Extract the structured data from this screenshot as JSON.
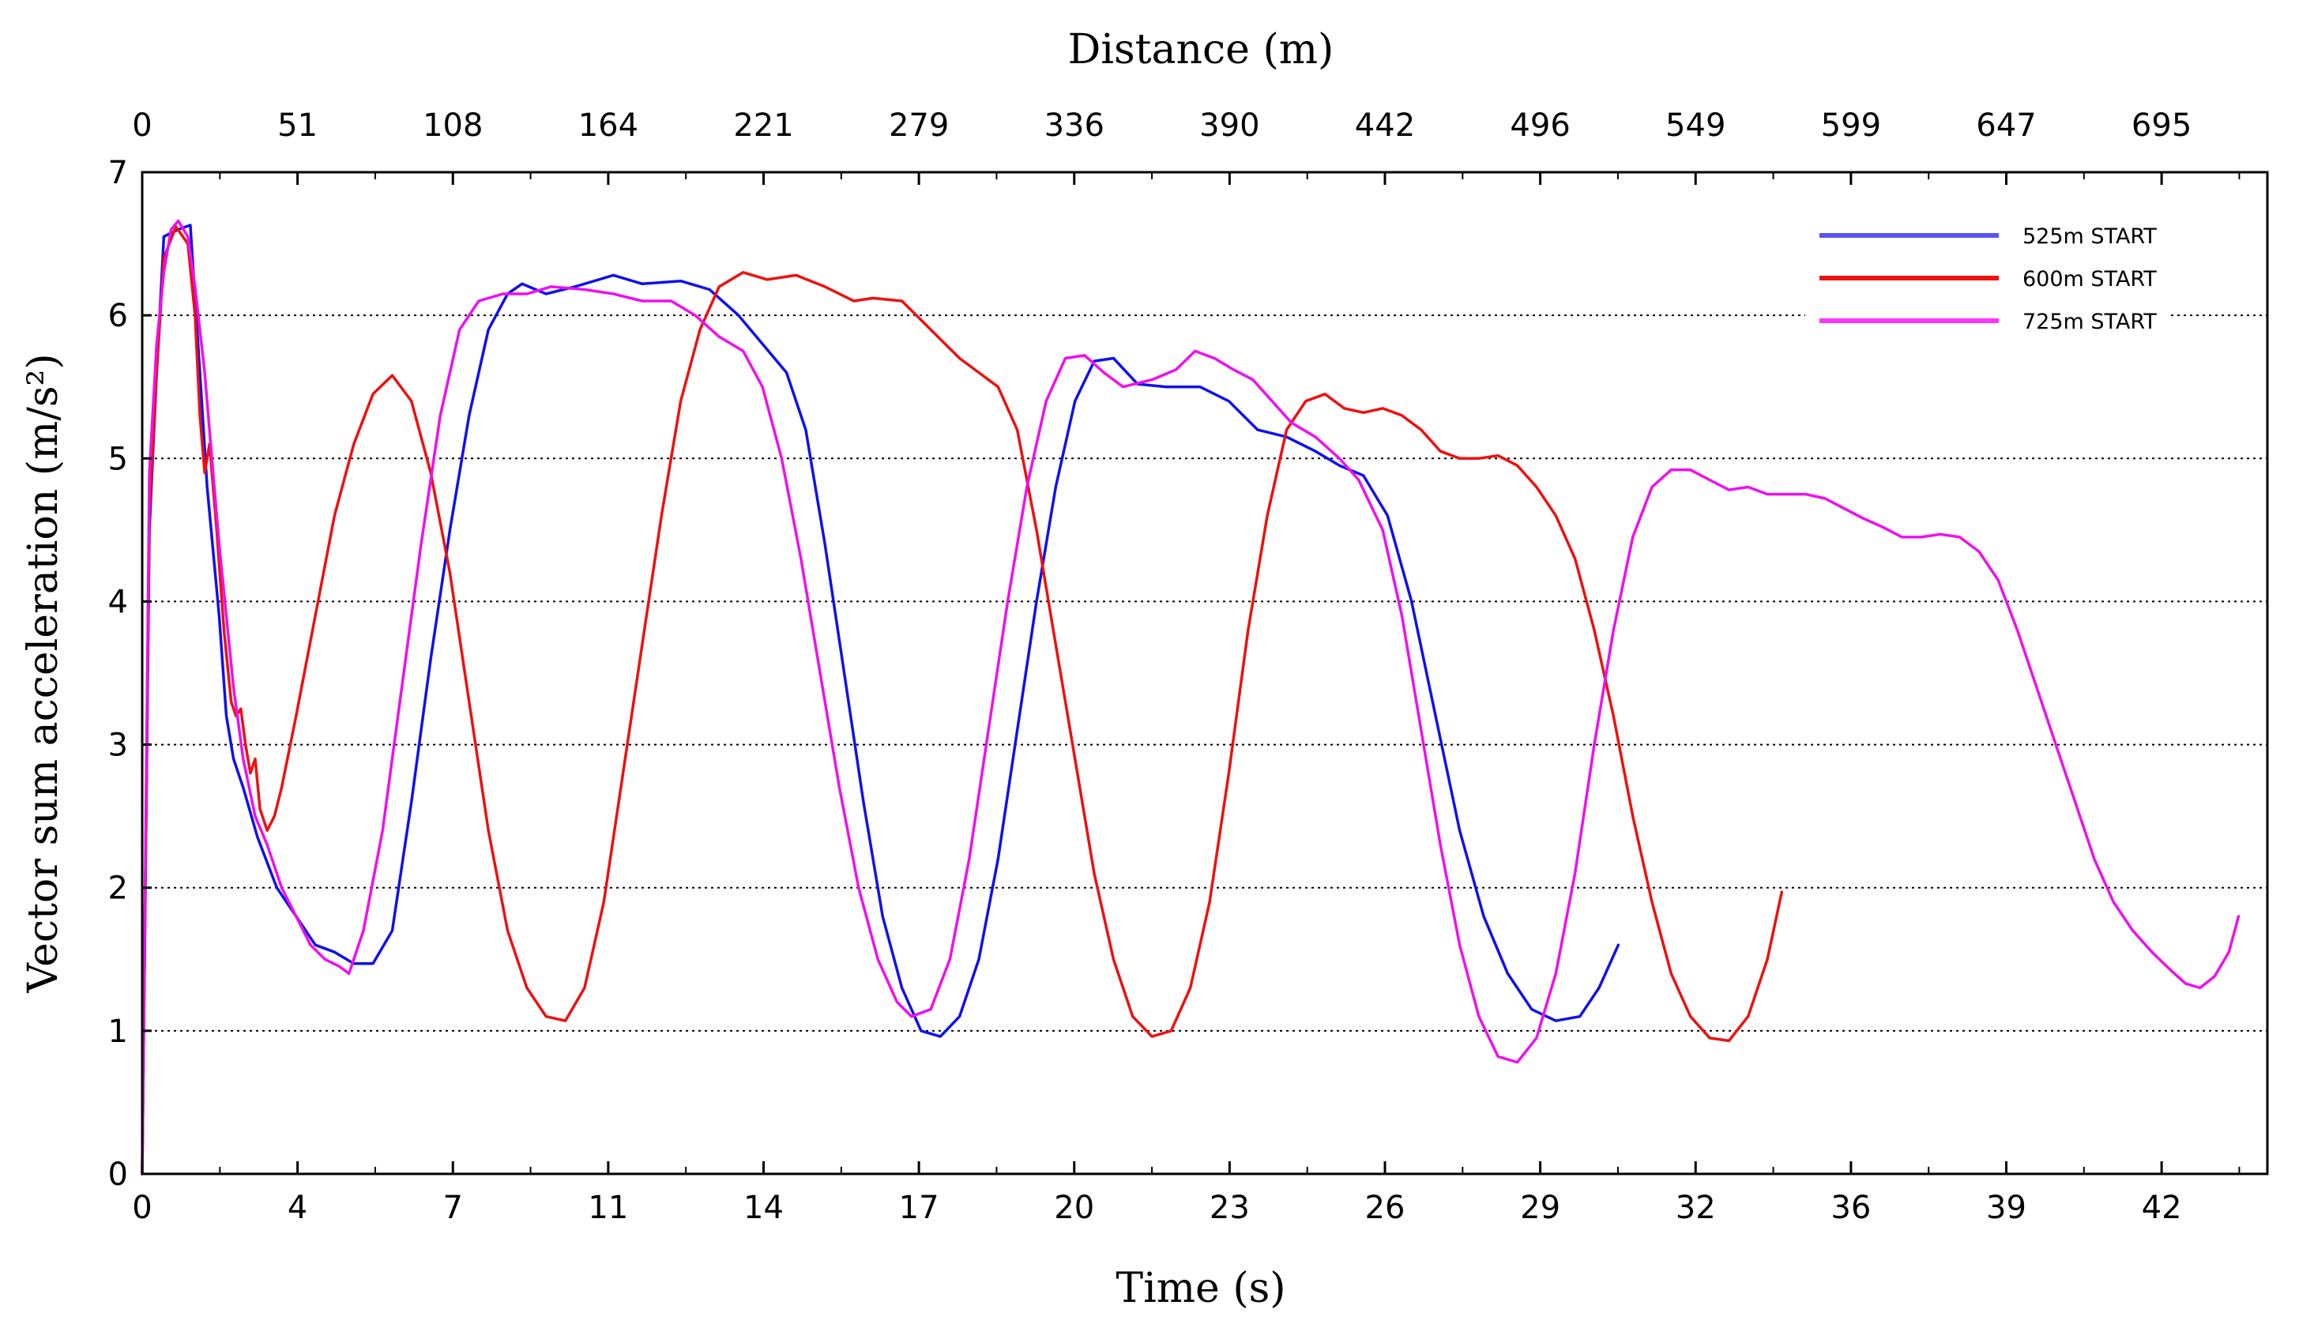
{
  "chart_data": {
    "type": "line",
    "xlabel": "Time (s)",
    "ylabel": "Vector sum acceleration (m/s²)",
    "x2label": "Distance (m)",
    "xlim": [
      0,
      44.2
    ],
    "ylim": [
      0,
      7
    ],
    "x_ticks": [
      "0",
      "4",
      "7",
      "11",
      "14",
      "17",
      "20",
      "23",
      "26",
      "29",
      "32",
      "36",
      "39",
      "42"
    ],
    "y_ticks": [
      "0",
      "1",
      "2",
      "3",
      "4",
      "5",
      "6",
      "7"
    ],
    "x2_ticks": [
      "0",
      "51",
      "108",
      "164",
      "221",
      "279",
      "336",
      "390",
      "442",
      "496",
      "549",
      "599",
      "647",
      "695"
    ],
    "grid": "horizontal dotted",
    "legend_position": "top-right",
    "series": [
      {
        "name": "525m START",
        "color": "#1010ee",
        "legend_color": "#5555f5",
        "points": [
          [
            0,
            0
          ],
          [
            0.15,
            4.5
          ],
          [
            0.3,
            5.6
          ],
          [
            0.45,
            6.55
          ],
          [
            0.75,
            6.6
          ],
          [
            1.0,
            6.63
          ],
          [
            1.2,
            5.6
          ],
          [
            1.35,
            4.8
          ],
          [
            1.6,
            3.9
          ],
          [
            1.75,
            3.2
          ],
          [
            1.9,
            2.9
          ],
          [
            2.1,
            2.7
          ],
          [
            2.4,
            2.35
          ],
          [
            2.8,
            2.0
          ],
          [
            3.2,
            1.8
          ],
          [
            3.6,
            1.6
          ],
          [
            4.0,
            1.55
          ],
          [
            4.4,
            1.47
          ],
          [
            4.8,
            1.47
          ],
          [
            5.2,
            1.7
          ],
          [
            5.6,
            2.6
          ],
          [
            6.0,
            3.6
          ],
          [
            6.4,
            4.5
          ],
          [
            6.8,
            5.3
          ],
          [
            7.2,
            5.9
          ],
          [
            7.6,
            6.15
          ],
          [
            7.9,
            6.22
          ],
          [
            8.4,
            6.15
          ],
          [
            9.0,
            6.2
          ],
          [
            9.8,
            6.28
          ],
          [
            10.4,
            6.22
          ],
          [
            11.2,
            6.24
          ],
          [
            11.8,
            6.18
          ],
          [
            12.4,
            6.0
          ],
          [
            12.9,
            5.8
          ],
          [
            13.4,
            5.6
          ],
          [
            13.8,
            5.2
          ],
          [
            14.2,
            4.4
          ],
          [
            14.6,
            3.5
          ],
          [
            15.0,
            2.6
          ],
          [
            15.4,
            1.8
          ],
          [
            15.8,
            1.3
          ],
          [
            16.2,
            1.0
          ],
          [
            16.6,
            0.96
          ],
          [
            17.0,
            1.1
          ],
          [
            17.4,
            1.5
          ],
          [
            17.8,
            2.2
          ],
          [
            18.2,
            3.1
          ],
          [
            18.6,
            4.0
          ],
          [
            19.0,
            4.8
          ],
          [
            19.4,
            5.4
          ],
          [
            19.8,
            5.68
          ],
          [
            20.2,
            5.7
          ],
          [
            20.7,
            5.52
          ],
          [
            21.3,
            5.5
          ],
          [
            22.0,
            5.5
          ],
          [
            22.6,
            5.4
          ],
          [
            23.2,
            5.2
          ],
          [
            23.8,
            5.15
          ],
          [
            24.4,
            5.05
          ],
          [
            24.9,
            4.95
          ],
          [
            25.4,
            4.88
          ],
          [
            25.9,
            4.6
          ],
          [
            26.4,
            4.0
          ],
          [
            26.9,
            3.2
          ],
          [
            27.4,
            2.4
          ],
          [
            27.9,
            1.8
          ],
          [
            28.4,
            1.4
          ],
          [
            28.9,
            1.15
          ],
          [
            29.4,
            1.07
          ],
          [
            29.9,
            1.1
          ],
          [
            30.3,
            1.3
          ],
          [
            30.7,
            1.6
          ]
        ]
      },
      {
        "name": "600m START",
        "color": "#ee1010",
        "legend_color": "#ee1010",
        "points": [
          [
            0,
            0
          ],
          [
            0.15,
            4.6
          ],
          [
            0.3,
            5.6
          ],
          [
            0.45,
            6.4
          ],
          [
            0.7,
            6.62
          ],
          [
            0.95,
            6.5
          ],
          [
            1.1,
            6.0
          ],
          [
            1.2,
            5.3
          ],
          [
            1.3,
            4.9
          ],
          [
            1.4,
            5.1
          ],
          [
            1.55,
            4.5
          ],
          [
            1.7,
            3.8
          ],
          [
            1.85,
            3.3
          ],
          [
            1.95,
            3.2
          ],
          [
            2.05,
            3.25
          ],
          [
            2.15,
            3.0
          ],
          [
            2.25,
            2.8
          ],
          [
            2.35,
            2.9
          ],
          [
            2.45,
            2.55
          ],
          [
            2.6,
            2.4
          ],
          [
            2.75,
            2.5
          ],
          [
            2.9,
            2.7
          ],
          [
            3.2,
            3.2
          ],
          [
            3.6,
            3.9
          ],
          [
            4.0,
            4.6
          ],
          [
            4.4,
            5.1
          ],
          [
            4.8,
            5.45
          ],
          [
            5.2,
            5.58
          ],
          [
            5.6,
            5.4
          ],
          [
            6.0,
            4.9
          ],
          [
            6.4,
            4.2
          ],
          [
            6.8,
            3.3
          ],
          [
            7.2,
            2.4
          ],
          [
            7.6,
            1.7
          ],
          [
            8.0,
            1.3
          ],
          [
            8.4,
            1.1
          ],
          [
            8.8,
            1.07
          ],
          [
            9.2,
            1.3
          ],
          [
            9.6,
            1.9
          ],
          [
            10.0,
            2.8
          ],
          [
            10.4,
            3.7
          ],
          [
            10.8,
            4.6
          ],
          [
            11.2,
            5.4
          ],
          [
            11.6,
            5.9
          ],
          [
            12.0,
            6.2
          ],
          [
            12.5,
            6.3
          ],
          [
            13.0,
            6.25
          ],
          [
            13.6,
            6.28
          ],
          [
            14.2,
            6.2
          ],
          [
            14.8,
            6.1
          ],
          [
            15.2,
            6.12
          ],
          [
            15.8,
            6.1
          ],
          [
            16.4,
            5.9
          ],
          [
            17.0,
            5.7
          ],
          [
            17.4,
            5.6
          ],
          [
            17.8,
            5.5
          ],
          [
            18.2,
            5.2
          ],
          [
            18.6,
            4.5
          ],
          [
            19.0,
            3.7
          ],
          [
            19.4,
            2.9
          ],
          [
            19.8,
            2.1
          ],
          [
            20.2,
            1.5
          ],
          [
            20.6,
            1.1
          ],
          [
            21.0,
            0.96
          ],
          [
            21.4,
            1.0
          ],
          [
            21.8,
            1.3
          ],
          [
            22.2,
            1.9
          ],
          [
            22.6,
            2.8
          ],
          [
            23.0,
            3.8
          ],
          [
            23.4,
            4.6
          ],
          [
            23.8,
            5.2
          ],
          [
            24.2,
            5.4
          ],
          [
            24.6,
            5.45
          ],
          [
            25.0,
            5.35
          ],
          [
            25.4,
            5.32
          ],
          [
            25.8,
            5.35
          ],
          [
            26.2,
            5.3
          ],
          [
            26.6,
            5.2
          ],
          [
            27.0,
            5.05
          ],
          [
            27.4,
            5.0
          ],
          [
            27.8,
            5.0
          ],
          [
            28.2,
            5.02
          ],
          [
            28.6,
            4.95
          ],
          [
            29.0,
            4.8
          ],
          [
            29.4,
            4.6
          ],
          [
            29.8,
            4.3
          ],
          [
            30.2,
            3.8
          ],
          [
            30.6,
            3.2
          ],
          [
            31.0,
            2.5
          ],
          [
            31.4,
            1.9
          ],
          [
            31.8,
            1.4
          ],
          [
            32.2,
            1.1
          ],
          [
            32.6,
            0.95
          ],
          [
            33.0,
            0.93
          ],
          [
            33.4,
            1.1
          ],
          [
            33.8,
            1.5
          ],
          [
            34.1,
            1.97
          ]
        ]
      },
      {
        "name": "725m START",
        "color": "#ee10ee",
        "legend_color": "#ff33ff",
        "points": [
          [
            0,
            0
          ],
          [
            0.15,
            4.9
          ],
          [
            0.3,
            5.8
          ],
          [
            0.45,
            6.3
          ],
          [
            0.6,
            6.6
          ],
          [
            0.75,
            6.66
          ],
          [
            0.95,
            6.55
          ],
          [
            1.1,
            6.2
          ],
          [
            1.3,
            5.6
          ],
          [
            1.45,
            5.0
          ],
          [
            1.6,
            4.4
          ],
          [
            1.75,
            3.9
          ],
          [
            1.9,
            3.4
          ],
          [
            2.1,
            2.9
          ],
          [
            2.35,
            2.5
          ],
          [
            2.6,
            2.3
          ],
          [
            2.9,
            2.0
          ],
          [
            3.2,
            1.8
          ],
          [
            3.5,
            1.6
          ],
          [
            3.8,
            1.5
          ],
          [
            4.1,
            1.45
          ],
          [
            4.3,
            1.4
          ],
          [
            4.6,
            1.7
          ],
          [
            5.0,
            2.4
          ],
          [
            5.4,
            3.4
          ],
          [
            5.8,
            4.4
          ],
          [
            6.2,
            5.3
          ],
          [
            6.6,
            5.9
          ],
          [
            7.0,
            6.1
          ],
          [
            7.5,
            6.15
          ],
          [
            8.0,
            6.15
          ],
          [
            8.5,
            6.2
          ],
          [
            9.2,
            6.18
          ],
          [
            9.8,
            6.15
          ],
          [
            10.4,
            6.1
          ],
          [
            11.0,
            6.1
          ],
          [
            11.5,
            6.0
          ],
          [
            12.0,
            5.85
          ],
          [
            12.5,
            5.75
          ],
          [
            12.9,
            5.5
          ],
          [
            13.3,
            5.0
          ],
          [
            13.7,
            4.3
          ],
          [
            14.1,
            3.5
          ],
          [
            14.5,
            2.7
          ],
          [
            14.9,
            2.0
          ],
          [
            15.3,
            1.5
          ],
          [
            15.7,
            1.2
          ],
          [
            16.0,
            1.1
          ],
          [
            16.4,
            1.15
          ],
          [
            16.8,
            1.5
          ],
          [
            17.2,
            2.2
          ],
          [
            17.6,
            3.1
          ],
          [
            18.0,
            4.0
          ],
          [
            18.4,
            4.8
          ],
          [
            18.8,
            5.4
          ],
          [
            19.2,
            5.7
          ],
          [
            19.6,
            5.72
          ],
          [
            20.0,
            5.6
          ],
          [
            20.4,
            5.5
          ],
          [
            21.0,
            5.55
          ],
          [
            21.5,
            5.62
          ],
          [
            21.9,
            5.75
          ],
          [
            22.3,
            5.7
          ],
          [
            22.7,
            5.62
          ],
          [
            23.1,
            5.55
          ],
          [
            23.5,
            5.4
          ],
          [
            23.9,
            5.25
          ],
          [
            24.4,
            5.15
          ],
          [
            24.9,
            5.0
          ],
          [
            25.3,
            4.85
          ],
          [
            25.8,
            4.5
          ],
          [
            26.2,
            3.9
          ],
          [
            26.6,
            3.1
          ],
          [
            27.0,
            2.3
          ],
          [
            27.4,
            1.6
          ],
          [
            27.8,
            1.1
          ],
          [
            28.2,
            0.82
          ],
          [
            28.6,
            0.78
          ],
          [
            29.0,
            0.95
          ],
          [
            29.4,
            1.4
          ],
          [
            29.8,
            2.1
          ],
          [
            30.2,
            3.0
          ],
          [
            30.6,
            3.8
          ],
          [
            31.0,
            4.45
          ],
          [
            31.4,
            4.8
          ],
          [
            31.8,
            4.92
          ],
          [
            32.2,
            4.92
          ],
          [
            32.6,
            4.85
          ],
          [
            33.0,
            4.78
          ],
          [
            33.4,
            4.8
          ],
          [
            33.8,
            4.75
          ],
          [
            34.2,
            4.75
          ],
          [
            34.6,
            4.75
          ],
          [
            35.0,
            4.72
          ],
          [
            35.4,
            4.65
          ],
          [
            35.8,
            4.58
          ],
          [
            36.2,
            4.52
          ],
          [
            36.6,
            4.45
          ],
          [
            37.0,
            4.45
          ],
          [
            37.4,
            4.47
          ],
          [
            37.8,
            4.45
          ],
          [
            38.2,
            4.35
          ],
          [
            38.6,
            4.15
          ],
          [
            39.0,
            3.8
          ],
          [
            39.4,
            3.4
          ],
          [
            39.8,
            3.0
          ],
          [
            40.2,
            2.6
          ],
          [
            40.6,
            2.2
          ],
          [
            41.0,
            1.9
          ],
          [
            41.4,
            1.7
          ],
          [
            41.8,
            1.55
          ],
          [
            42.2,
            1.42
          ],
          [
            42.5,
            1.33
          ],
          [
            42.8,
            1.3
          ],
          [
            43.1,
            1.38
          ],
          [
            43.4,
            1.55
          ],
          [
            43.6,
            1.8
          ]
        ]
      }
    ]
  }
}
